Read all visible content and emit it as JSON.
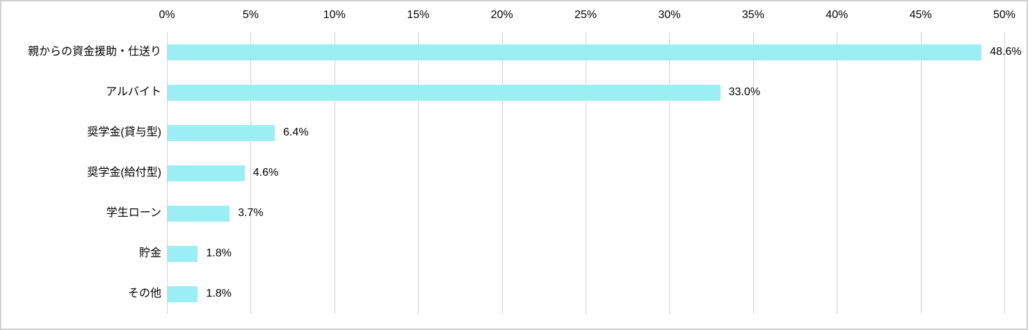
{
  "chart_data": {
    "type": "bar",
    "orientation": "horizontal",
    "title": "",
    "xlabel": "",
    "ylabel": "",
    "xlim": [
      0,
      50
    ],
    "x_tick_labels": [
      "0%",
      "5%",
      "10%",
      "15%",
      "20%",
      "25%",
      "30%",
      "35%",
      "40%",
      "45%",
      "50%"
    ],
    "x_tick_values": [
      0,
      5,
      10,
      15,
      20,
      25,
      30,
      35,
      40,
      45,
      50
    ],
    "categories": [
      "親からの資金援助・仕送り",
      "アルバイト",
      "奨学金(貸与型)",
      "奨学金(給付型)",
      "学生ローン",
      "貯金",
      "その他"
    ],
    "values": [
      48.6,
      33.0,
      6.4,
      4.6,
      3.7,
      1.8,
      1.8
    ],
    "value_labels": [
      "48.6%",
      "33.0%",
      "6.4%",
      "4.6%",
      "3.7%",
      "1.8%",
      "1.8%"
    ],
    "grid": "vertical",
    "legend": "none",
    "colors": {
      "bar_fill": "#9beef3",
      "gridline": "#d2d2d2",
      "text": "#000000",
      "background": "#ffffff",
      "frame_border": "#d0d0d0"
    }
  }
}
